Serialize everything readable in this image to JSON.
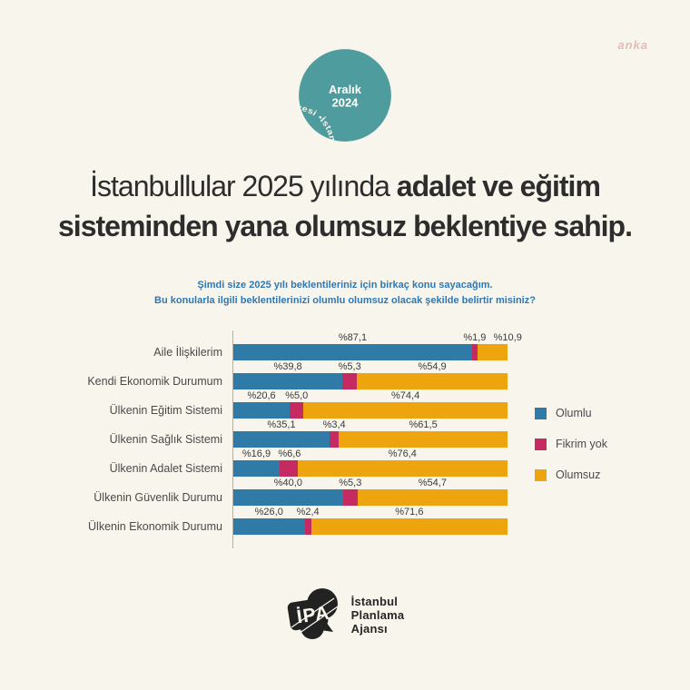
{
  "background_color": "#f8f5ec",
  "watermark": {
    "text": "anka",
    "color": "#dcaaa6"
  },
  "badge": {
    "circular_text": "İstanbul Barometresi • İstanbul Barometresi • ",
    "center_line1": "Aralık",
    "center_line2": "2024",
    "color": "#4e9c9d"
  },
  "title": {
    "line1_regular": "İstanbullular 2025 yılında ",
    "line1_bold": "adalet ve eğitim",
    "line2_bold": "sisteminden yana olumsuz beklentiye sahip."
  },
  "subtitle": {
    "line1": "Şimdi size 2025 yılı beklentileriniz için birkaç konu sayacağım.",
    "line2": "Bu konularla ilgili beklentilerinizi olumlu olumsuz olacak şekilde belirtir misiniz?",
    "color": "#2e78b5"
  },
  "chart_data": {
    "type": "bar",
    "orientation": "horizontal",
    "stacked": true,
    "unit": "percent",
    "xlim": [
      0,
      100
    ],
    "grid": false,
    "legend_position": "right",
    "categories": [
      "Aile İlişkilerim",
      "Kendi Ekonomik Durumum",
      "Ülkenin Eğitim Sistemi",
      "Ülkenin Sağlık Sistemi",
      "Ülkenin Adalet Sistemi",
      "Ülkenin Güvenlik Durumu",
      "Ülkenin Ekonomik Durumu"
    ],
    "series": [
      {
        "name": "Olumlu",
        "color": "#2f7aa6",
        "values": [
          87.1,
          39.8,
          20.6,
          35.1,
          16.9,
          40.0,
          26.0
        ],
        "labels": [
          "%87,1",
          "%39,8",
          "%20,6",
          "%35,1",
          "%16,9",
          "%40,0",
          "%26,0"
        ]
      },
      {
        "name": "Fikrim yok",
        "color": "#c52a61",
        "values": [
          1.9,
          5.3,
          5.0,
          3.4,
          6.6,
          5.3,
          2.4
        ],
        "labels": [
          "%1,9",
          "%5,3",
          "%5,0",
          "%3,4",
          "%6,6",
          "%5,3",
          "%2,4"
        ]
      },
      {
        "name": "Olumsuz",
        "color": "#eda40e",
        "values": [
          10.9,
          54.9,
          74.4,
          61.5,
          76.4,
          54.7,
          71.6
        ],
        "labels": [
          "%10,9",
          "%54,9",
          "%74,4",
          "%61,5",
          "%76,4",
          "%54,7",
          "%71,6"
        ]
      }
    ]
  },
  "footer": {
    "org_line1": "İstanbul",
    "org_line2": "Planlama",
    "org_line3": "Ajansı"
  }
}
